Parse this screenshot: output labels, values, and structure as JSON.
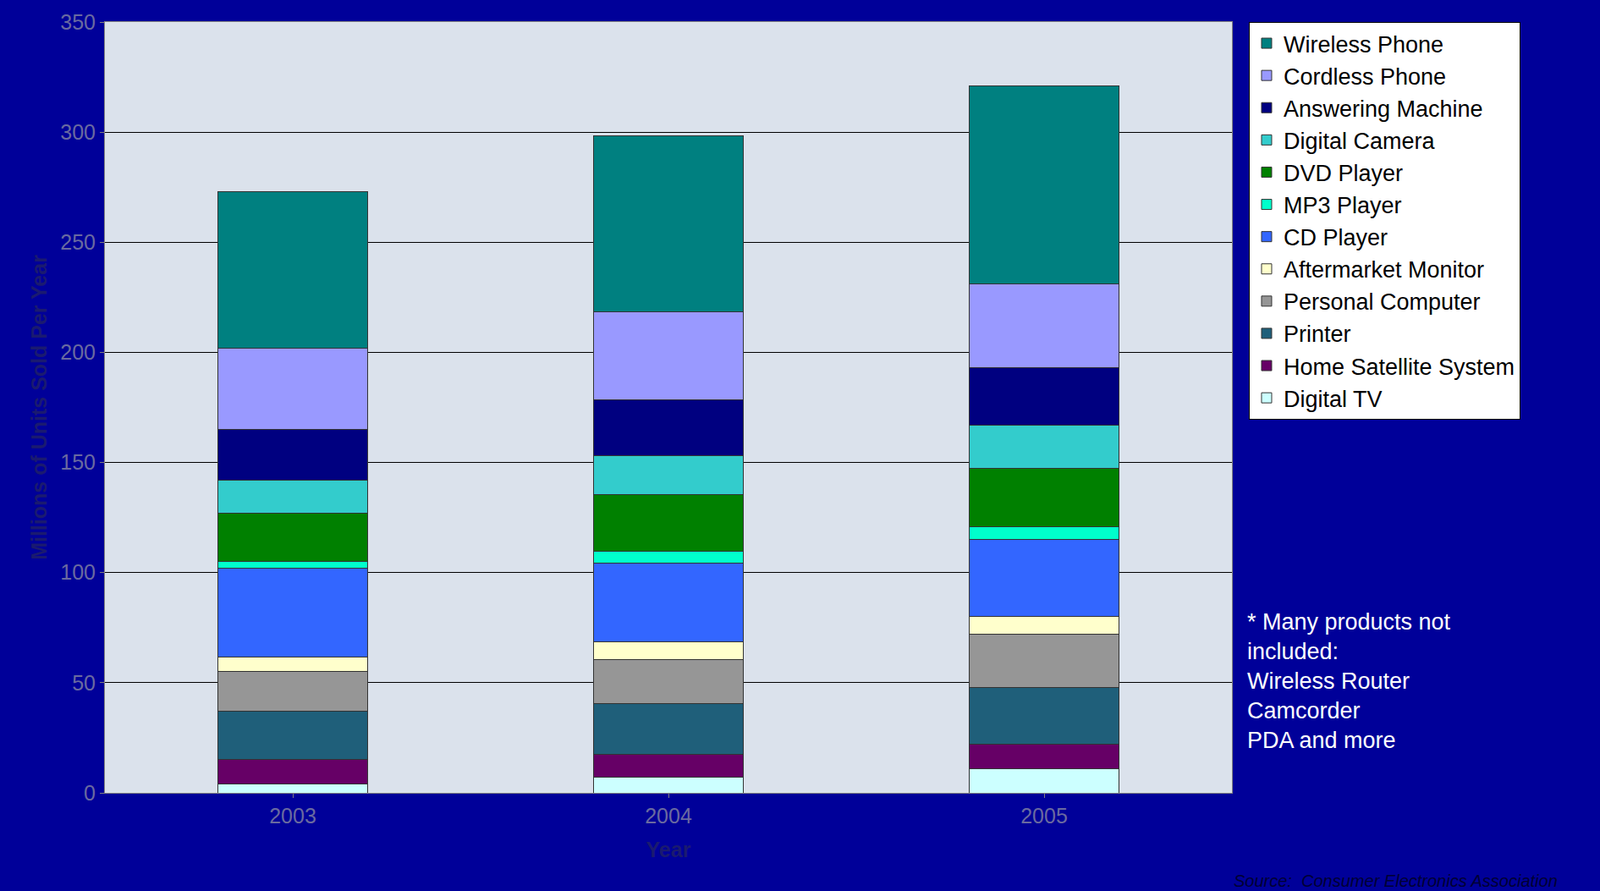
{
  "chart_data": {
    "type": "bar",
    "stacked": true,
    "grid": true,
    "legend": "upper right",
    "x_label": "Year",
    "y_label": "Millions of Units Sold Per Year",
    "categories": [
      "2003",
      "2004",
      "2005"
    ],
    "ylim": [
      0,
      350
    ],
    "yticks": [
      0,
      50,
      100,
      150,
      200,
      250,
      300,
      350
    ],
    "series": [
      {
        "name": "Digital TV",
        "color": "#CCFFFF",
        "values": [
          4,
          7,
          11
        ]
      },
      {
        "name": "Home Satellite System",
        "color": "#660066",
        "values": [
          11,
          10.5,
          11
        ]
      },
      {
        "name": "Printer",
        "color": "#1F5F7A",
        "values": [
          22,
          23,
          26
        ]
      },
      {
        "name": "Personal Computer",
        "color": "#969696",
        "values": [
          18,
          20,
          24
        ]
      },
      {
        "name": "Aftermarket Monitor",
        "color": "#FFFFCC",
        "values": [
          6.5,
          8,
          8
        ]
      },
      {
        "name": "CD Player",
        "color": "#3366FF",
        "values": [
          40.5,
          36,
          35
        ]
      },
      {
        "name": "MP3 Player",
        "color": "#00FFCC",
        "values": [
          3,
          5,
          6
        ]
      },
      {
        "name": "DVD Player",
        "color": "#008000",
        "values": [
          22,
          26,
          26.5
        ]
      },
      {
        "name": "Digital Camera",
        "color": "#33CCCC",
        "values": [
          15,
          17.5,
          19.5
        ]
      },
      {
        "name": "Answering Machine",
        "color": "#000080",
        "values": [
          23,
          25.5,
          26
        ]
      },
      {
        "name": "Cordless Phone",
        "color": "#9999FF",
        "values": [
          37,
          40,
          38
        ]
      },
      {
        "name": "Wireless Phone",
        "color": "#008080",
        "values": [
          71,
          80,
          90
        ]
      }
    ],
    "notes": [
      "* Many products not",
      "included:",
      "Wireless Router",
      "Camcorder",
      "PDA and more"
    ],
    "source": "Source:  Consumer Electronics Association"
  }
}
